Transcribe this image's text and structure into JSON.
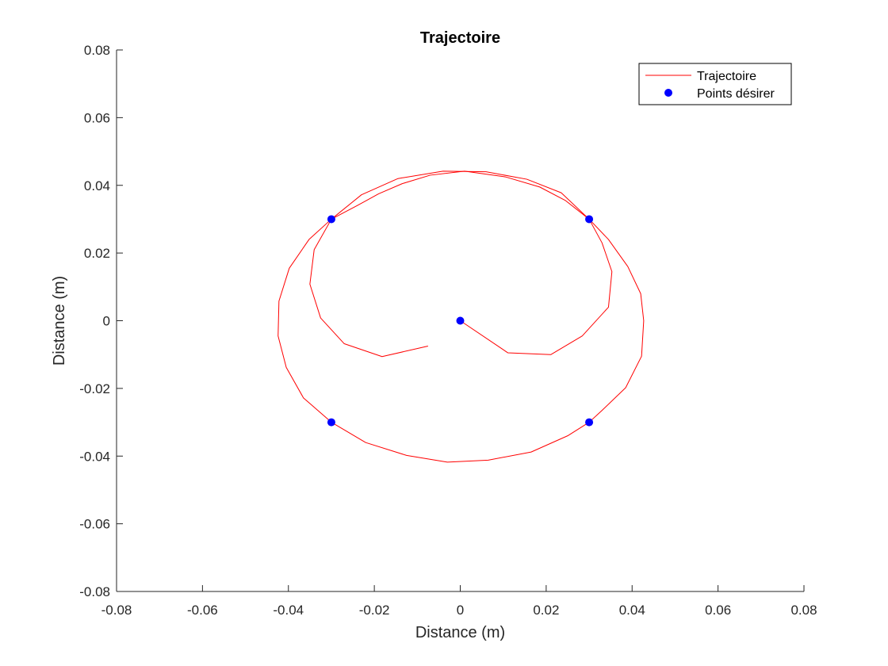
{
  "chart_data": {
    "type": "line",
    "title": "Trajectoire",
    "xlabel": "Distance (m)",
    "ylabel": "Distance (m)",
    "xlim": [
      -0.08,
      0.08
    ],
    "ylim": [
      -0.08,
      0.08
    ],
    "xticks": [
      -0.08,
      -0.06,
      -0.04,
      -0.02,
      0,
      0.02,
      0.04,
      0.06,
      0.08
    ],
    "yticks": [
      -0.08,
      -0.06,
      -0.04,
      -0.02,
      0,
      0.02,
      0.04,
      0.06,
      0.08
    ],
    "xtick_labels": [
      "-0.08",
      "-0.06",
      "-0.04",
      "-0.02",
      "0",
      "0.02",
      "0.04",
      "0.06",
      "0.08"
    ],
    "ytick_labels": [
      "-0.08",
      "-0.06",
      "-0.04",
      "-0.02",
      "0",
      "0.02",
      "0.04",
      "0.06",
      "0.08"
    ],
    "grid": false,
    "legend_position": "top-right",
    "series": [
      {
        "name": "Trajectoire",
        "kind": "line",
        "color": "#ff0000",
        "points": [
          [
            0.0,
            0.0
          ],
          [
            0.0111,
            -0.0095
          ],
          [
            0.0211,
            -0.01
          ],
          [
            0.0284,
            -0.0045
          ],
          [
            0.0345,
            0.004
          ],
          [
            0.0353,
            0.0145
          ],
          [
            0.033,
            0.023
          ],
          [
            0.03,
            0.03
          ],
          [
            0.0245,
            0.0355
          ],
          [
            0.0185,
            0.0395
          ],
          [
            0.0105,
            0.0425
          ],
          [
            0.001,
            0.0442
          ],
          [
            -0.007,
            0.043
          ],
          [
            -0.0135,
            0.0405
          ],
          [
            -0.019,
            0.0375
          ],
          [
            -0.024,
            0.034
          ],
          [
            -0.03,
            0.03
          ],
          [
            -0.034,
            0.021
          ],
          [
            -0.035,
            0.0108
          ],
          [
            -0.0325,
            0.0008
          ],
          [
            -0.027,
            -0.0068
          ],
          [
            -0.0182,
            -0.0106
          ],
          [
            -0.0075,
            -0.0075
          ]
        ]
      },
      {
        "name": "Trajectoire",
        "kind": "line",
        "color": "#ff0000",
        "points": [
          [
            -0.03,
            0.03
          ],
          [
            -0.023,
            0.0372
          ],
          [
            -0.0145,
            0.042
          ],
          [
            -0.004,
            0.0442
          ],
          [
            0.006,
            0.044
          ],
          [
            0.0155,
            0.0418
          ],
          [
            0.0235,
            0.0378
          ],
          [
            0.03,
            0.03
          ],
          [
            0.0345,
            0.024
          ],
          [
            0.039,
            0.016
          ],
          [
            0.042,
            0.008
          ],
          [
            0.0427,
            0.0
          ],
          [
            0.0422,
            -0.0105
          ],
          [
            0.0385,
            -0.0198
          ],
          [
            0.033,
            -0.0265
          ],
          [
            0.03,
            -0.03
          ],
          [
            0.025,
            -0.034
          ],
          [
            0.0165,
            -0.0388
          ],
          [
            0.0065,
            -0.0412
          ],
          [
            -0.003,
            -0.0418
          ],
          [
            -0.0125,
            -0.0398
          ],
          [
            -0.022,
            -0.036
          ],
          [
            -0.03,
            -0.03
          ],
          [
            -0.0365,
            -0.0228
          ],
          [
            -0.0405,
            -0.0138
          ],
          [
            -0.0424,
            -0.0045
          ],
          [
            -0.0422,
            0.0058
          ],
          [
            -0.0398,
            0.0155
          ],
          [
            -0.0352,
            0.024
          ],
          [
            -0.03,
            0.03
          ]
        ]
      },
      {
        "name": "Points désirer",
        "kind": "scatter",
        "color": "#0000ff",
        "points": [
          [
            0.0,
            0.0
          ],
          [
            0.03,
            0.03
          ],
          [
            -0.03,
            0.03
          ],
          [
            -0.03,
            -0.03
          ],
          [
            0.03,
            -0.03
          ]
        ]
      }
    ],
    "legend": [
      {
        "label": "Trajectoire",
        "kind": "line",
        "color": "#ff0000"
      },
      {
        "label": "Points désirer",
        "kind": "marker",
        "color": "#0000ff"
      }
    ]
  }
}
